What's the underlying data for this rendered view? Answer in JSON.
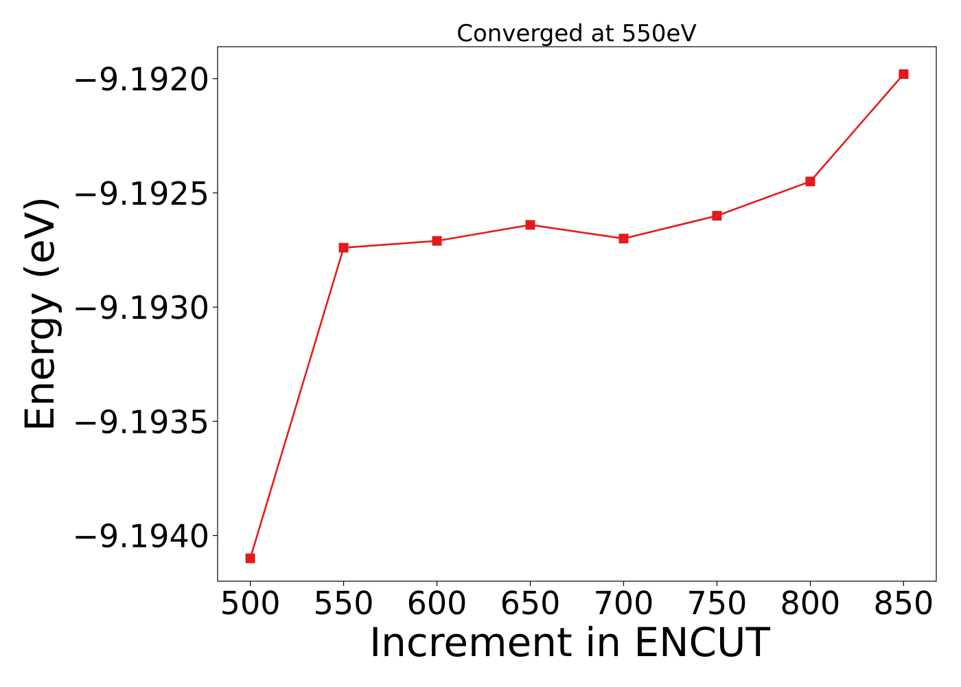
{
  "chart_data": {
    "type": "line",
    "title": "Converged at 550eV",
    "xlabel": "Increment in ENCUT",
    "ylabel": "Energy (eV)",
    "x": [
      500,
      550,
      600,
      650,
      700,
      750,
      800,
      850
    ],
    "xticks": [
      500,
      550,
      600,
      650,
      700,
      750,
      800,
      850
    ],
    "xtick_labels": [
      "500",
      "550",
      "600",
      "650",
      "700",
      "750",
      "800",
      "850"
    ],
    "yticks": [
      -9.192,
      -9.1925,
      -9.193,
      -9.1935,
      -9.194
    ],
    "ytick_labels": [
      "−9.1920",
      "−9.1925",
      "−9.1930",
      "−9.1935",
      "−9.1940"
    ],
    "xlim": [
      482.5,
      867.5
    ],
    "ylim": [
      -9.1942,
      -9.19186
    ],
    "grid": false,
    "series": [
      {
        "color": "#e41a1c",
        "marker": "square",
        "values": [
          -9.1941,
          -9.19274,
          -9.19271,
          -9.19264,
          -9.1927,
          -9.1926,
          -9.19245,
          -9.19198
        ]
      }
    ]
  }
}
